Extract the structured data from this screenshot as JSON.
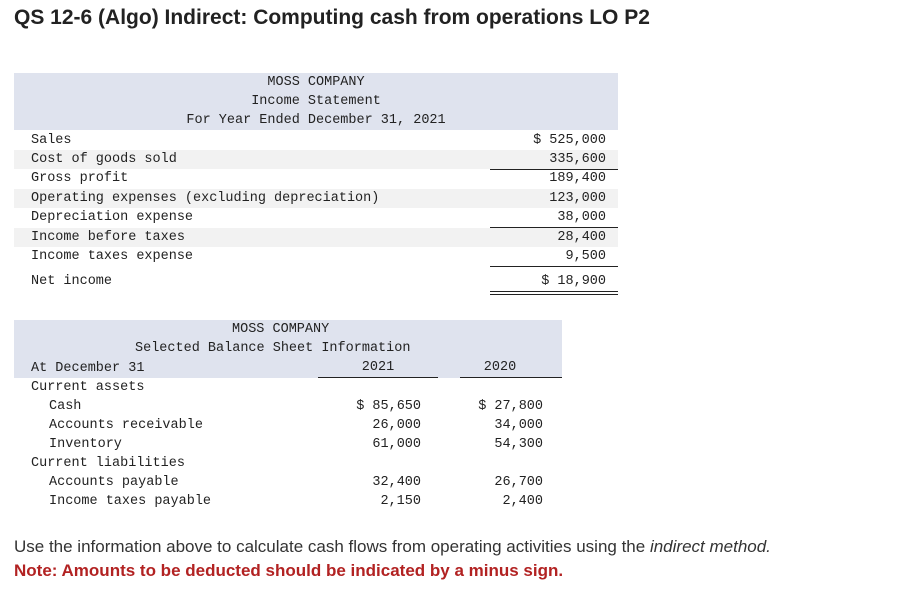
{
  "title": "QS 12-6 (Algo) Indirect: Computing cash from operations LO P2",
  "income_statement": {
    "header": [
      "MOSS COMPANY",
      "Income Statement",
      "For Year Ended December 31, 2021"
    ],
    "rows": [
      {
        "label": "Sales",
        "value": "$ 525,000"
      },
      {
        "label": "Cost of goods sold",
        "value": "335,600"
      },
      {
        "label": "Gross profit",
        "value": "189,400"
      },
      {
        "label": "Operating expenses (excluding depreciation)",
        "value": "123,000"
      },
      {
        "label": "Depreciation expense",
        "value": "38,000"
      },
      {
        "label": "Income before taxes",
        "value": "28,400"
      },
      {
        "label": "Income taxes expense",
        "value": "9,500"
      },
      {
        "label": "Net income",
        "value": "$ 18,900"
      }
    ]
  },
  "balance_sheet": {
    "header": [
      "MOSS COMPANY",
      "Selected Balance Sheet Information"
    ],
    "date_label": "At December 31",
    "columns": [
      "2021",
      "2020"
    ],
    "rows": [
      {
        "label": "Current assets"
      },
      {
        "label": "Cash",
        "values": [
          "$ 85,650",
          "$ 27,800"
        ]
      },
      {
        "label": "Accounts receivable",
        "values": [
          "26,000",
          "34,000"
        ]
      },
      {
        "label": "Inventory",
        "values": [
          "61,000",
          "54,300"
        ]
      },
      {
        "label": "Current liabilities"
      },
      {
        "label": "Accounts payable",
        "values": [
          "32,400",
          "26,700"
        ]
      },
      {
        "label": "Income taxes payable",
        "values": [
          "2,150",
          "2,400"
        ]
      }
    ]
  },
  "instructions": {
    "text": "Use the information above to calculate cash flows from operating activities using the",
    "emphasis": "indirect method.",
    "note": "Note: Amounts to be deducted should be indicated by a minus sign."
  }
}
